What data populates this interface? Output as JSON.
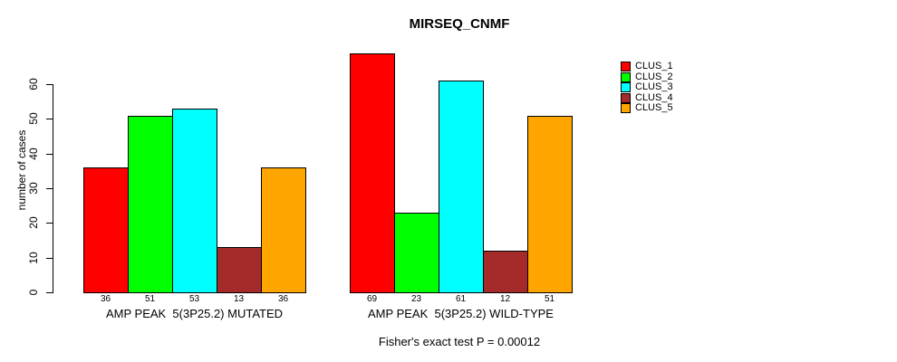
{
  "title": "MIRSEQ_CNMF",
  "footnote": "Fisher's exact test P = 0.00012",
  "chart_data": {
    "type": "bar",
    "title": "MIRSEQ_CNMF",
    "ylabel": "number of cases",
    "xlabel": "",
    "yticks": [
      0,
      10,
      20,
      30,
      40,
      50,
      60
    ],
    "ylim": [
      0,
      72
    ],
    "grid": false,
    "legend_position": "right",
    "annotation": "Fisher's exact test P = 0.00012",
    "clusters": [
      "CLUS_1",
      "CLUS_2",
      "CLUS_3",
      "CLUS_4",
      "CLUS_5"
    ],
    "colors": [
      "#ff0000",
      "#00ff00",
      "#00ffff",
      "#a52a2a",
      "#ffa500"
    ],
    "groups": [
      {
        "label": "AMP PEAK  5(3P25.2) MUTATED",
        "values": [
          36,
          51,
          53,
          13,
          36
        ]
      },
      {
        "label": "AMP PEAK  5(3P25.2) WILD-TYPE",
        "values": [
          69,
          23,
          61,
          12,
          51
        ]
      }
    ]
  }
}
